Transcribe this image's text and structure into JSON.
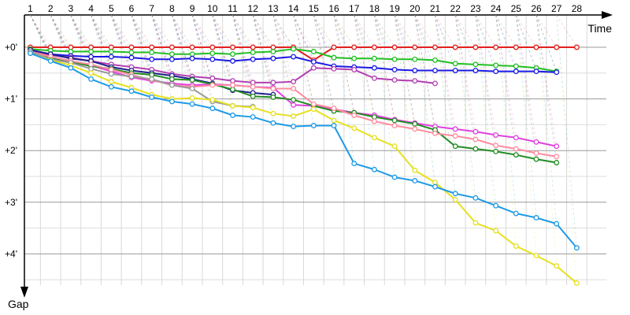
{
  "chart_data": {
    "type": "line",
    "xlabel": "Time",
    "ylabel": "Gap",
    "x": [
      1,
      2,
      3,
      4,
      5,
      6,
      7,
      8,
      9,
      10,
      11,
      12,
      13,
      14,
      15,
      16,
      17,
      18,
      19,
      20,
      21,
      22,
      23,
      24,
      25,
      26,
      27,
      28
    ],
    "x_tick_labels": [
      "1",
      "2",
      "3",
      "4",
      "5",
      "6",
      "7",
      "8",
      "9",
      "10",
      "11",
      "12",
      "13",
      "14",
      "15",
      "16",
      "17",
      "18",
      "19",
      "20",
      "21",
      "22",
      "23",
      "24",
      "25",
      "26",
      "27",
      "28"
    ],
    "y_tick_labels": [
      "+0'",
      "+1'",
      "+2'",
      "+3'",
      "+4'"
    ],
    "y_tick_values": [
      0,
      60,
      120,
      180,
      240
    ],
    "xlim": [
      0,
      29
    ],
    "ylim": [
      0,
      270
    ],
    "y_inverted": true,
    "grid": true,
    "series": [
      {
        "color": "#e32020",
        "values": [
          0,
          0,
          0,
          0,
          0,
          0,
          0,
          0,
          0,
          0,
          0,
          0,
          0,
          0,
          15,
          0,
          0,
          0,
          0,
          0,
          0,
          0,
          0,
          0,
          0,
          0,
          0,
          0
        ]
      },
      {
        "color": "#22c022",
        "values": [
          2,
          4,
          5,
          5,
          5,
          6,
          6,
          8,
          8,
          7,
          8,
          6,
          5,
          2,
          5,
          12,
          13,
          13,
          14,
          14,
          15,
          19,
          20,
          21,
          22,
          24,
          28,
          null
        ]
      },
      {
        "color": "#1a1ae6",
        "values": [
          5,
          8,
          10,
          11,
          11,
          12,
          14,
          14,
          13,
          14,
          16,
          14,
          13,
          11,
          17,
          22,
          23,
          24,
          26,
          27,
          27,
          27,
          27,
          28,
          28,
          28,
          29,
          null
        ]
      },
      {
        "color": "#b33fb3",
        "values": [
          5,
          9,
          12,
          16,
          20,
          23,
          26,
          31,
          34,
          36,
          39,
          41,
          41,
          40,
          24,
          25,
          26,
          36,
          38,
          39,
          42,
          null,
          null,
          null,
          null,
          null,
          null,
          null
        ]
      },
      {
        "color": "#20208c",
        "values": [
          3,
          8,
          13,
          16,
          23,
          27,
          30,
          33,
          37,
          42,
          50,
          53,
          55,
          null,
          null,
          null,
          null,
          null,
          null,
          null,
          null,
          null,
          null,
          null,
          null,
          null,
          null,
          null
        ]
      },
      {
        "color": "#e040e0",
        "values": [
          6,
          11,
          16,
          21,
          28,
          35,
          39,
          42,
          44,
          43,
          44,
          46,
          47,
          67,
          68,
          72,
          76,
          79,
          84,
          88,
          92,
          95,
          98,
          102,
          105,
          110,
          115,
          null
        ]
      },
      {
        "color": "#238c23",
        "values": [
          6,
          12,
          17,
          22,
          25,
          30,
          32,
          37,
          38,
          43,
          49,
          57,
          58,
          61,
          68,
          74,
          76,
          81,
          85,
          89,
          96,
          115,
          118,
          121,
          125,
          130,
          134,
          null
        ]
      },
      {
        "color": "#ff8ca0",
        "values": [
          5,
          11,
          16,
          20,
          26,
          32,
          38,
          44,
          46,
          44,
          44,
          46,
          48,
          48,
          66,
          71,
          79,
          86,
          91,
          95,
          100,
          103,
          107,
          114,
          118,
          123,
          127,
          null
        ]
      },
      {
        "color": "#999999",
        "values": [
          5,
          14,
          18,
          25,
          31,
          34,
          37,
          44,
          48,
          63,
          68,
          69,
          null,
          null,
          null,
          null,
          null,
          null,
          null,
          null,
          null,
          null,
          null,
          null,
          null,
          null,
          null,
          null
        ]
      },
      {
        "color": "#e6e020",
        "values": [
          7,
          15,
          21,
          30,
          40,
          47,
          55,
          60,
          59,
          61,
          68,
          70,
          77,
          80,
          72,
          85,
          94,
          105,
          115,
          143,
          157,
          177,
          204,
          213,
          231,
          242,
          254,
          274
        ]
      },
      {
        "color": "#1e9be6",
        "values": [
          7,
          16,
          24,
          37,
          46,
          51,
          58,
          63,
          66,
          71,
          79,
          81,
          88,
          92,
          91,
          91,
          135,
          142,
          151,
          155,
          162,
          170,
          175,
          184,
          193,
          198,
          205,
          233
        ]
      }
    ]
  }
}
